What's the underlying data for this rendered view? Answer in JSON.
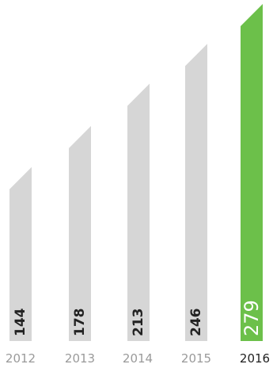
{
  "chart_data": {
    "type": "bar",
    "categories": [
      "2012",
      "2013",
      "2014",
      "2015",
      "2016"
    ],
    "values": [
      144,
      178,
      213,
      246,
      279
    ],
    "value_labels": [
      "144",
      "178",
      "213",
      "246",
      "279"
    ],
    "highlight_index": 4,
    "ylim": [
      0,
      279
    ],
    "grid": false,
    "legend": "none",
    "title": "",
    "xlabel": "",
    "ylabel": "",
    "colors": {
      "bar": "#d6d6d6",
      "highlight": "#6cc04a",
      "year_text": "#9a9a9a",
      "year_highlight": "#222222"
    }
  }
}
